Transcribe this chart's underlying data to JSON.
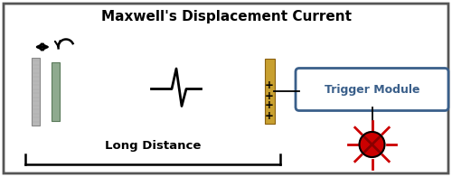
{
  "title": "Maxwell's Displacement Current",
  "title_fontsize": 11,
  "title_fontweight": "bold",
  "long_distance_label": "Long Distance",
  "trigger_module_label": "Trigger Module",
  "trigger_box_color": "#3a5f8a",
  "plate1_color": "#b8b8b8",
  "plate2_color": "#8faa8f",
  "capacitor_color": "#c8a030",
  "led_color": "#cc0000",
  "ray_color": "#cc0000",
  "bg_color": "#ffffff",
  "border_color": "#555555",
  "xlim": [
    0,
    10
  ],
  "ylim": [
    0,
    3.92
  ]
}
